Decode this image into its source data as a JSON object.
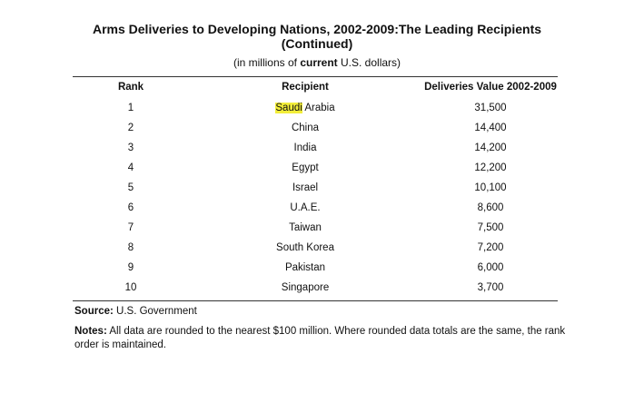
{
  "title_line1": "Arms Deliveries to Developing Nations, 2002-2009:The Leading Recipients",
  "title_line2": "(Continued)",
  "subtitle": {
    "prefix": "(in millions of ",
    "emphasis": "current",
    "suffix": " U.S. dollars)"
  },
  "headers": {
    "rank": "Rank",
    "recipient": "Recipient",
    "value": "Deliveries Value 2002-2009"
  },
  "rows": [
    {
      "rank": "1",
      "recipient_highlight": "Saudi",
      "recipient_rest": " Arabia",
      "value": "31,500"
    },
    {
      "rank": "2",
      "recipient_highlight": "",
      "recipient_rest": "China",
      "value": "14,400"
    },
    {
      "rank": "3",
      "recipient_highlight": "",
      "recipient_rest": "India",
      "value": "14,200"
    },
    {
      "rank": "4",
      "recipient_highlight": "",
      "recipient_rest": "Egypt",
      "value": "12,200"
    },
    {
      "rank": "5",
      "recipient_highlight": "",
      "recipient_rest": "Israel",
      "value": "10,100"
    },
    {
      "rank": "6",
      "recipient_highlight": "",
      "recipient_rest": "U.A.E.",
      "value": "8,600"
    },
    {
      "rank": "7",
      "recipient_highlight": "",
      "recipient_rest": "Taiwan",
      "value": "7,500"
    },
    {
      "rank": "8",
      "recipient_highlight": "",
      "recipient_rest": "South Korea",
      "value": "7,200"
    },
    {
      "rank": "9",
      "recipient_highlight": "",
      "recipient_rest": "Pakistan",
      "value": "6,000"
    },
    {
      "rank": "10",
      "recipient_highlight": "",
      "recipient_rest": "Singapore",
      "value": "3,700"
    }
  ],
  "source": {
    "label": "Source:",
    "text": " U.S. Government"
  },
  "notes": {
    "label": "Notes:",
    "text": " All data are rounded to the nearest $100 million. Where rounded data totals are the same, the rank order is maintained."
  },
  "highlight_color": "#f2ed3a"
}
